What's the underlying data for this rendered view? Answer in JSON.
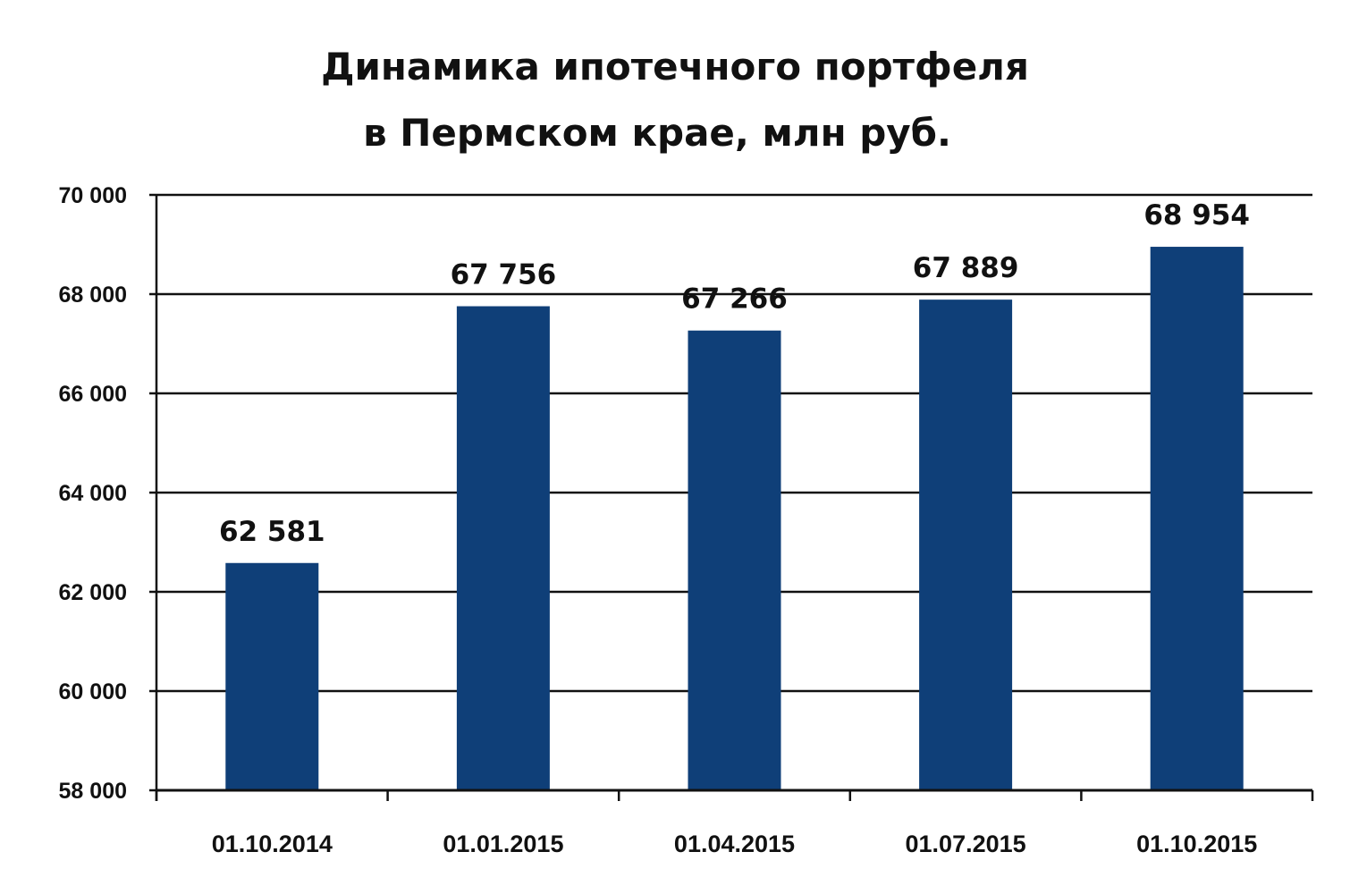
{
  "chart_data": {
    "type": "bar",
    "title_line1": "Динамика ипотечного портфеля",
    "title_line2": "в Пермском крае, млн руб.",
    "categories": [
      "01.10.2014",
      "01.01.2015",
      "01.04.2015",
      "01.07.2015",
      "01.10.2015"
    ],
    "values": [
      62581,
      67756,
      67266,
      67889,
      68954
    ],
    "value_labels": [
      "62 581",
      "67 756",
      "67 266",
      "67 889",
      "68 954"
    ],
    "ylim": [
      58000,
      70000
    ],
    "yticks": [
      58000,
      60000,
      62000,
      64000,
      66000,
      68000,
      70000
    ],
    "ytick_labels": [
      "58 000",
      "60 000",
      "62 000",
      "64 000",
      "66 000",
      "68 000",
      "70 000"
    ],
    "grid": true,
    "bar_color": "#0f3f78",
    "xlabel": "",
    "ylabel": ""
  }
}
